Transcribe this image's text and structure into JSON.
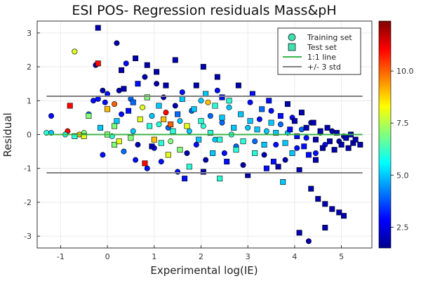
{
  "chart_data": {
    "type": "scatter",
    "title": "ESI POS- Regression residuals Mass&pH",
    "xlabel": "Experimental log(IE)",
    "ylabel": "Residual",
    "xlim": [
      -1.5,
      5.65
    ],
    "ylim": [
      -3.35,
      3.35
    ],
    "xticks": [
      -1,
      0,
      1,
      2,
      3,
      4,
      5
    ],
    "yticks": [
      -3,
      -2,
      -1,
      0,
      1,
      2,
      3
    ],
    "grid": true,
    "legend_position": "top-right",
    "legend": [
      {
        "label": "Training set",
        "kind": "circle",
        "color": "#40e0b0"
      },
      {
        "label": "Test set",
        "kind": "square",
        "color": "#40e0b0"
      },
      {
        "label": "1:1 line",
        "kind": "line",
        "color": "#3cb44b"
      },
      {
        "label": "+/- 3 std",
        "kind": "line",
        "color": "#808080"
      }
    ],
    "reference_lines": [
      {
        "name": "1:1 line",
        "y": 0,
        "x_range": [
          -1.3,
          5.45
        ],
        "color": "#3cb44b"
      },
      {
        "name": "+/- 3 std",
        "y": 1.13,
        "x_range": [
          -1.3,
          5.45
        ],
        "color": "#808080"
      },
      {
        "name": "+/- 3 std",
        "y": -1.13,
        "x_range": [
          -1.3,
          5.45
        ],
        "color": "#808080"
      }
    ],
    "colorbar": {
      "colormap": "jet",
      "range": [
        1.5,
        12.4
      ],
      "ticks": [
        2.5,
        5.0,
        7.5,
        10.0
      ],
      "tick_labels": [
        "2.5",
        "5.0",
        "7.5",
        "10.0"
      ]
    },
    "series": [
      {
        "name": "Training set",
        "marker": "circle",
        "points": [
          [
            -1.3,
            0.05,
            6
          ],
          [
            -1.2,
            0.05,
            5
          ],
          [
            -1.2,
            0.55,
            3
          ],
          [
            -0.85,
            0.1,
            11
          ],
          [
            -0.7,
            2.45,
            8
          ],
          [
            -0.5,
            0.05,
            7
          ],
          [
            -0.4,
            0.6,
            4
          ],
          [
            -0.3,
            1.0,
            3
          ],
          [
            -0.25,
            2.05,
            2
          ],
          [
            -0.2,
            1.05,
            3
          ],
          [
            -0.1,
            1.3,
            2
          ],
          [
            -0.05,
            0.95,
            3
          ],
          [
            0.0,
            1.2,
            3
          ],
          [
            0.1,
            -0.05,
            6
          ],
          [
            0.2,
            2.7,
            2
          ],
          [
            0.25,
            1.3,
            2
          ],
          [
            0.3,
            0.6,
            3
          ],
          [
            0.35,
            -0.5,
            4
          ],
          [
            0.4,
            2.1,
            3
          ],
          [
            0.5,
            1.05,
            4
          ],
          [
            0.55,
            0.1,
            5
          ],
          [
            0.6,
            -0.75,
            3
          ],
          [
            0.65,
            -0.3,
            2
          ],
          [
            0.75,
            0.8,
            8
          ],
          [
            0.8,
            1.7,
            2
          ],
          [
            0.85,
            -1.0,
            3
          ],
          [
            0.95,
            0.55,
            5
          ],
          [
            1.0,
            -0.4,
            3
          ],
          [
            1.05,
            1.5,
            2
          ],
          [
            1.1,
            0.3,
            6
          ],
          [
            1.15,
            -0.8,
            3
          ],
          [
            1.2,
            1.1,
            2
          ],
          [
            1.3,
            0.2,
            4
          ],
          [
            1.35,
            -0.2,
            7
          ],
          [
            1.45,
            0.85,
            2
          ],
          [
            1.5,
            -1.1,
            3
          ],
          [
            1.55,
            0.4,
            5
          ],
          [
            1.6,
            1.25,
            3
          ],
          [
            1.7,
            -0.55,
            2
          ],
          [
            1.75,
            0.1,
            5
          ],
          [
            1.8,
            0.7,
            4
          ],
          [
            1.9,
            -0.3,
            3
          ],
          [
            2.0,
            1.0,
            5
          ],
          [
            2.05,
            0.25,
            6
          ],
          [
            2.1,
            -0.75,
            2
          ],
          [
            2.2,
            0.55,
            4
          ],
          [
            2.3,
            -0.15,
            5
          ],
          [
            2.35,
            1.3,
            3
          ],
          [
            2.45,
            0.35,
            4
          ],
          [
            2.5,
            -0.55,
            3
          ],
          [
            2.6,
            0.8,
            5
          ],
          [
            2.65,
            0.0,
            6
          ],
          [
            2.75,
            -0.35,
            4
          ],
          [
            2.85,
            0.6,
            3
          ],
          [
            2.9,
            -0.9,
            2
          ],
          [
            3.0,
            0.2,
            5
          ],
          [
            3.05,
            0.95,
            3
          ],
          [
            3.15,
            -0.2,
            4
          ],
          [
            3.25,
            0.45,
            3
          ],
          [
            3.35,
            -0.6,
            2
          ],
          [
            3.4,
            0.1,
            5
          ],
          [
            3.5,
            0.7,
            3
          ],
          [
            3.6,
            -0.3,
            3
          ],
          [
            3.7,
            0.3,
            4
          ],
          [
            3.8,
            -0.75,
            2
          ],
          [
            3.85,
            0.05,
            5
          ],
          [
            3.95,
            0.5,
            3
          ],
          [
            4.05,
            -0.4,
            3
          ],
          [
            4.15,
            0.15,
            4
          ],
          [
            4.25,
            -0.1,
            3
          ],
          [
            4.35,
            0.35,
            2
          ],
          [
            4.45,
            -0.55,
            3
          ],
          [
            4.55,
            0.05,
            2
          ],
          [
            4.65,
            -0.3,
            3
          ],
          [
            4.8,
            0.1,
            2
          ],
          [
            4.95,
            -0.2,
            2
          ],
          [
            5.05,
            -0.05,
            2
          ],
          [
            4.3,
            -3.15,
            2
          ],
          [
            -0.1,
            -0.6,
            3
          ],
          [
            -0.6,
            0.0,
            9
          ],
          [
            -0.9,
            0.0,
            6
          ],
          [
            0.15,
            0.9,
            10
          ],
          [
            1.25,
            0.65,
            11
          ],
          [
            2.15,
            0.95,
            9
          ]
        ]
      },
      {
        "name": "Test set",
        "marker": "square",
        "points": [
          [
            -0.8,
            0.85,
            11
          ],
          [
            -0.7,
            -0.05,
            6
          ],
          [
            -0.5,
            -0.05,
            8
          ],
          [
            -0.4,
            0.55,
            7
          ],
          [
            -0.2,
            2.1,
            11
          ],
          [
            -0.2,
            3.15,
            2
          ],
          [
            -0.15,
            0.2,
            5
          ],
          [
            0.0,
            0.75,
            9
          ],
          [
            0.0,
            0.0,
            7
          ],
          [
            0.15,
            0.25,
            7
          ],
          [
            0.15,
            -0.3,
            7
          ],
          [
            0.2,
            0.4,
            5
          ],
          [
            0.3,
            1.9,
            2
          ],
          [
            0.35,
            1.35,
            2
          ],
          [
            0.45,
            0.7,
            3
          ],
          [
            0.5,
            -0.1,
            7
          ],
          [
            0.6,
            2.25,
            2
          ],
          [
            0.65,
            1.5,
            3
          ],
          [
            0.7,
            0.45,
            8
          ],
          [
            0.8,
            -0.85,
            11
          ],
          [
            0.85,
            2.05,
            2
          ],
          [
            0.9,
            0.25,
            6
          ],
          [
            0.95,
            -0.35,
            2
          ],
          [
            1.05,
            1.85,
            2
          ],
          [
            1.1,
            0.85,
            5
          ],
          [
            1.15,
            -0.25,
            6
          ],
          [
            1.2,
            0.45,
            9
          ],
          [
            1.25,
            1.45,
            2
          ],
          [
            1.3,
            -0.6,
            8
          ],
          [
            1.4,
            0.1,
            6
          ],
          [
            1.45,
            2.2,
            2
          ],
          [
            1.5,
            0.6,
            4
          ],
          [
            1.55,
            -0.45,
            7
          ],
          [
            1.6,
            1.05,
            5
          ],
          [
            1.65,
            -1.3,
            3
          ],
          [
            1.7,
            0.25,
            8
          ],
          [
            1.75,
            -0.95,
            6
          ],
          [
            1.85,
            0.75,
            5
          ],
          [
            1.9,
            1.45,
            2
          ],
          [
            1.95,
            -0.15,
            5
          ],
          [
            2.0,
            0.4,
            6
          ],
          [
            2.05,
            -1.1,
            2
          ],
          [
            2.1,
            1.2,
            5
          ],
          [
            2.2,
            0.05,
            6
          ],
          [
            2.25,
            -0.55,
            5
          ],
          [
            2.3,
            0.85,
            6
          ],
          [
            2.35,
            1.7,
            2
          ],
          [
            2.4,
            -0.15,
            6
          ],
          [
            2.45,
            0.5,
            5
          ],
          [
            2.55,
            -0.8,
            3
          ],
          [
            2.6,
            1.0,
            6
          ],
          [
            2.7,
            0.2,
            5
          ],
          [
            2.75,
            -0.45,
            6
          ],
          [
            2.8,
            1.45,
            2
          ],
          [
            2.85,
            0.6,
            5
          ],
          [
            2.9,
            -0.2,
            6
          ],
          [
            3.0,
            -1.2,
            2
          ],
          [
            3.05,
            0.4,
            5
          ],
          [
            3.1,
            1.2,
            3
          ],
          [
            3.15,
            -0.55,
            6
          ],
          [
            3.2,
            0.15,
            5
          ],
          [
            3.3,
            0.75,
            4
          ],
          [
            3.35,
            -0.3,
            5
          ],
          [
            3.45,
            1.0,
            3
          ],
          [
            3.5,
            0.35,
            5
          ],
          [
            3.55,
            -0.8,
            3
          ],
          [
            3.6,
            0.05,
            5
          ],
          [
            3.7,
            0.55,
            3
          ],
          [
            3.75,
            -1.4,
            5
          ],
          [
            3.8,
            -0.25,
            5
          ],
          [
            3.85,
            0.9,
            2
          ],
          [
            3.9,
            0.15,
            3
          ],
          [
            3.95,
            -0.55,
            5
          ],
          [
            4.0,
            0.4,
            2
          ],
          [
            4.05,
            -0.05,
            3
          ],
          [
            4.1,
            -1.05,
            2
          ],
          [
            4.15,
            0.65,
            2
          ],
          [
            4.2,
            -0.35,
            3
          ],
          [
            4.25,
            0.2,
            2
          ],
          [
            4.3,
            -0.6,
            3
          ],
          [
            4.35,
            -1.6,
            2
          ],
          [
            4.4,
            0.35,
            2
          ],
          [
            4.45,
            -0.15,
            2
          ],
          [
            4.5,
            -1.9,
            2
          ],
          [
            4.55,
            0.1,
            2
          ],
          [
            4.6,
            -0.4,
            2
          ],
          [
            4.65,
            -2.05,
            2
          ],
          [
            4.7,
            0.2,
            2
          ],
          [
            4.75,
            -0.2,
            2
          ],
          [
            4.8,
            -2.2,
            2
          ],
          [
            4.85,
            -0.45,
            2
          ],
          [
            4.9,
            0.05,
            2
          ],
          [
            4.95,
            -2.3,
            2
          ],
          [
            5.0,
            -0.3,
            2
          ],
          [
            5.05,
            -2.4,
            2
          ],
          [
            5.1,
            -0.1,
            2
          ],
          [
            5.15,
            -0.4,
            2
          ],
          [
            5.2,
            0.0,
            2
          ],
          [
            5.25,
            -0.25,
            2
          ],
          [
            5.3,
            -0.15,
            2
          ],
          [
            5.4,
            -0.3,
            2
          ],
          [
            4.65,
            -2.75,
            2
          ],
          [
            4.1,
            -2.9,
            2
          ],
          [
            2.4,
            -1.3,
            6
          ],
          [
            3.4,
            -1.0,
            3
          ],
          [
            1.0,
            -0.15,
            9
          ],
          [
            0.85,
            1.1,
            7
          ],
          [
            1.35,
            0.3,
            10
          ],
          [
            2.05,
            2.0,
            2
          ],
          [
            2.45,
            1.1,
            3
          ],
          [
            3.65,
            -0.95,
            2
          ],
          [
            4.45,
            -0.75,
            2
          ],
          [
            0.55,
            0.95,
            4
          ],
          [
            0.25,
            -0.2,
            8
          ]
        ]
      }
    ]
  }
}
